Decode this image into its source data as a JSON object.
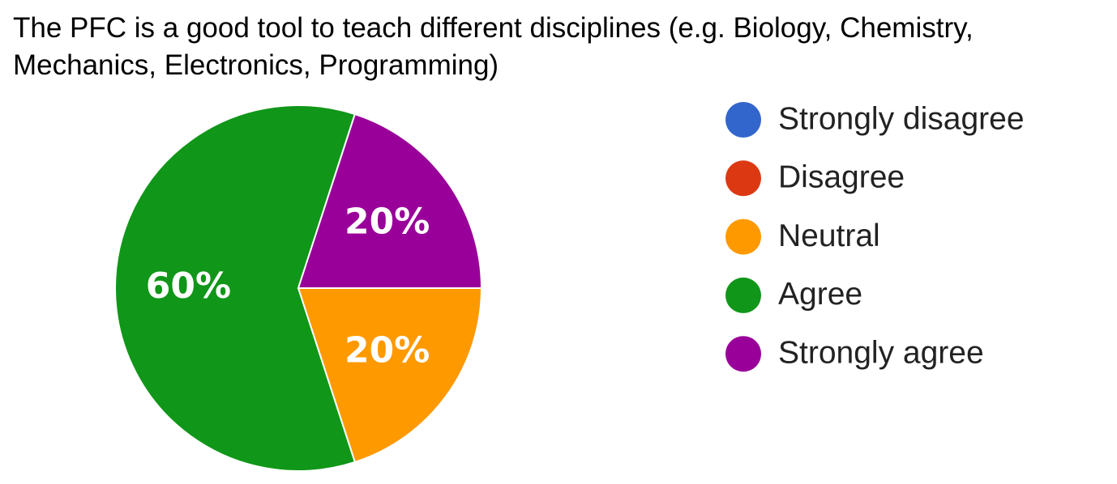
{
  "chart_data": {
    "type": "pie",
    "title": "The PFC is a good tool to teach different disciplines (e.g. Biology, Chemistry, Mechanics, Electronics, Programming)",
    "categories": [
      "Strongly disagree",
      "Disagree",
      "Neutral",
      "Agree",
      "Strongly agree"
    ],
    "values": [
      0,
      0,
      20,
      60,
      20
    ],
    "value_labels": [
      null,
      null,
      "20%",
      "60%",
      "20%"
    ],
    "colors": [
      "#3366cc",
      "#dc3912",
      "#ff9900",
      "#109618",
      "#990099"
    ],
    "legend": "right"
  }
}
